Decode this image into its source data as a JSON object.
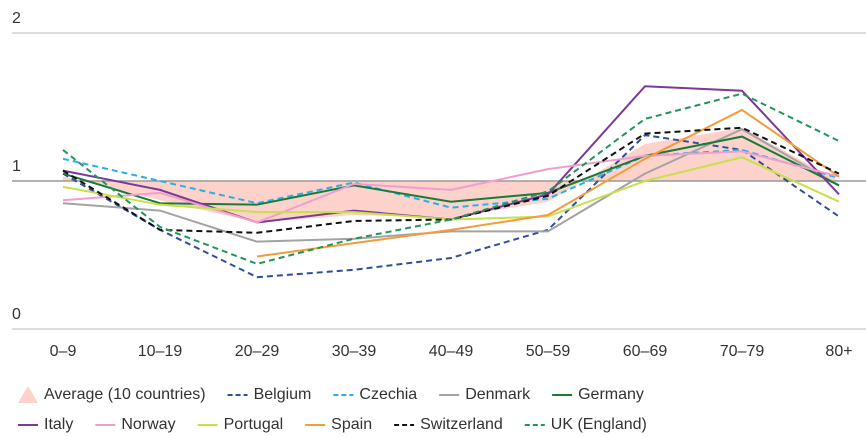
{
  "chart_data": {
    "type": "line",
    "categories": [
      "0–9",
      "10–19",
      "20–29",
      "30–39",
      "40–49",
      "50–59",
      "60–69",
      "70–79",
      "80+"
    ],
    "ylim": [
      0,
      2
    ],
    "yticks": [
      0,
      1,
      2
    ],
    "grid": true,
    "reference_line": 1,
    "area": {
      "name": "Average (10 countries)",
      "color": "#fcd2cb",
      "values": [
        1.03,
        0.87,
        0.72,
        0.77,
        0.75,
        0.86,
        1.25,
        1.36,
        1.0
      ]
    },
    "series": [
      {
        "name": "Belgium",
        "color": "#2e4f9e",
        "dash": true,
        "values": [
          1.05,
          0.67,
          0.35,
          0.4,
          0.48,
          0.67,
          1.31,
          1.21,
          0.76
        ]
      },
      {
        "name": "Czechia",
        "color": "#2ab0e4",
        "dash": true,
        "values": [
          1.15,
          1.0,
          0.85,
          0.99,
          0.82,
          0.88,
          1.17,
          1.21,
          1.02
        ]
      },
      {
        "name": "Denmark",
        "color": "#a3a3a3",
        "dash": false,
        "values": [
          0.85,
          0.8,
          0.59,
          0.61,
          0.66,
          0.66,
          1.05,
          1.35,
          0.97
        ]
      },
      {
        "name": "Germany",
        "color": "#1a7a3a",
        "dash": false,
        "values": [
          1.05,
          0.85,
          0.84,
          0.97,
          0.86,
          0.92,
          1.17,
          1.3,
          0.97
        ]
      },
      {
        "name": "Italy",
        "color": "#7b3a96",
        "dash": false,
        "values": [
          1.07,
          0.94,
          0.72,
          0.8,
          0.74,
          0.91,
          1.64,
          1.61,
          0.91
        ]
      },
      {
        "name": "Norway",
        "color": "#f09ed0",
        "dash": false,
        "values": [
          0.87,
          0.92,
          0.72,
          0.98,
          0.94,
          1.08,
          1.17,
          1.2,
          1.03
        ]
      },
      {
        "name": "Portugal",
        "color": "#c8e04a",
        "dash": false,
        "values": [
          0.96,
          0.84,
          0.79,
          0.79,
          0.74,
          0.76,
          1.0,
          1.16,
          0.86
        ]
      },
      {
        "name": "Spain",
        "color": "#f39c3d",
        "dash": false,
        "values": [
          null,
          null,
          0.49,
          0.58,
          0.67,
          0.77,
          1.15,
          1.48,
          1.03
        ]
      },
      {
        "name": "Switzerland",
        "color": "#111111",
        "dash": true,
        "values": [
          1.07,
          0.67,
          0.65,
          0.73,
          0.74,
          0.9,
          1.32,
          1.36,
          1.05
        ]
      },
      {
        "name": "UK (England)",
        "color": "#22955a",
        "dash": true,
        "values": [
          1.21,
          0.69,
          0.44,
          0.61,
          0.74,
          0.93,
          1.42,
          1.59,
          1.27
        ]
      }
    ]
  }
}
